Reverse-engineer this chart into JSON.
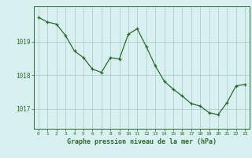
{
  "x": [
    0,
    1,
    2,
    3,
    4,
    5,
    6,
    7,
    8,
    9,
    10,
    11,
    12,
    13,
    14,
    15,
    16,
    17,
    18,
    19,
    20,
    21,
    22,
    23
  ],
  "y": [
    1019.72,
    1019.58,
    1019.52,
    1019.18,
    1018.72,
    1018.52,
    1018.18,
    1018.08,
    1018.52,
    1018.48,
    1019.22,
    1019.38,
    1018.85,
    1018.28,
    1017.82,
    1017.58,
    1017.38,
    1017.15,
    1017.08,
    1016.88,
    1016.82,
    1017.18,
    1017.68,
    1017.72
  ],
  "line_color": "#2d6a2d",
  "marker_color": "#2d6a2d",
  "bg_color": "#d8f0f0",
  "grid_color": "#a8c8c8",
  "axis_color": "#2d6a2d",
  "tick_color": "#2d6a2d",
  "xlabel": "Graphe pression niveau de la mer (hPa)",
  "xlabel_color": "#2d6a2d",
  "yticks": [
    1017,
    1018,
    1019
  ],
  "ylim": [
    1016.4,
    1020.05
  ],
  "xlim": [
    -0.5,
    23.5
  ],
  "xtick_labels": [
    "0",
    "1",
    "2",
    "3",
    "4",
    "5",
    "6",
    "7",
    "8",
    "9",
    "10",
    "11",
    "12",
    "13",
    "14",
    "15",
    "16",
    "17",
    "18",
    "19",
    "20",
    "21",
    "22",
    "23"
  ]
}
